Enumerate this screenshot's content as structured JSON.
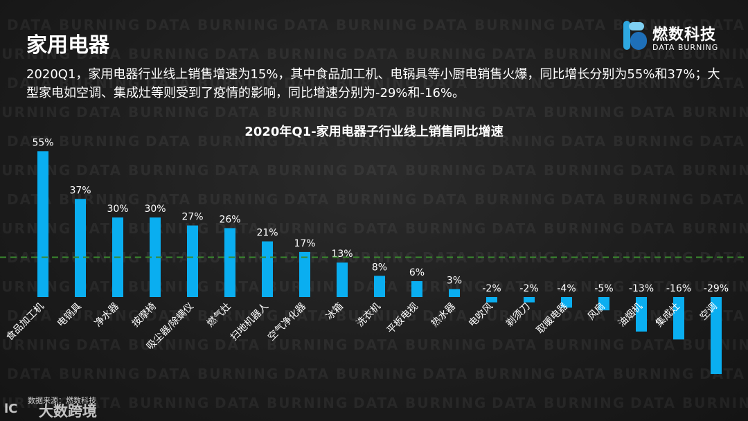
{
  "header": {
    "title": "家用电器",
    "description": "2020Q1，家用电器行业线上销售增速为15%，其中食品加工机、电锅具等小厨电销售火爆，同比增长分别为55%和37%；大型家电如空调、集成灶等则受到了疫情的影响，同比增速分别为-29%和-16%。"
  },
  "logo": {
    "name_cn": "燃数科技",
    "name_en": "DATA BURNING",
    "colors": [
      "#2ea8e0",
      "#7fd0f2",
      "#1e6fb8"
    ]
  },
  "watermark": {
    "text": "DATA BURNING"
  },
  "footer": {
    "source": "数据来源：燃数科技",
    "brand": "大数跨境",
    "brand_mark": "lC"
  },
  "chart_data": {
    "type": "bar",
    "title": "2020年Q1-家用电器子行业线上销售同比增速",
    "categories": [
      "食品加工机",
      "电锅具",
      "净水器",
      "按摩椅",
      "吸尘器/除螨仪",
      "燃气灶",
      "扫地机器人",
      "空气净化器",
      "冰箱",
      "洗衣机",
      "平板电视",
      "热水器",
      "电吹风",
      "剃须刀",
      "取暖电器",
      "风扇",
      "油烟机",
      "集成灶",
      "空调"
    ],
    "values": [
      55,
      37,
      30,
      30,
      27,
      26,
      21,
      17,
      13,
      8,
      6,
      3,
      -2,
      -2,
      -4,
      -5,
      -13,
      -16,
      -29
    ],
    "value_labels": [
      "55%",
      "37%",
      "30%",
      "30%",
      "27%",
      "26%",
      "21%",
      "17%",
      "13%",
      "8%",
      "6%",
      "3%",
      "-2%",
      "-2%",
      "-4%",
      "-5%",
      "-13%",
      "-16%",
      "-29%"
    ],
    "reference_line": {
      "value": 15,
      "style": "dashed",
      "color": "#3a8a2e"
    },
    "bar_color": "#0aaef0",
    "ylim": [
      -29,
      55
    ],
    "grid": false,
    "legend": "none"
  }
}
